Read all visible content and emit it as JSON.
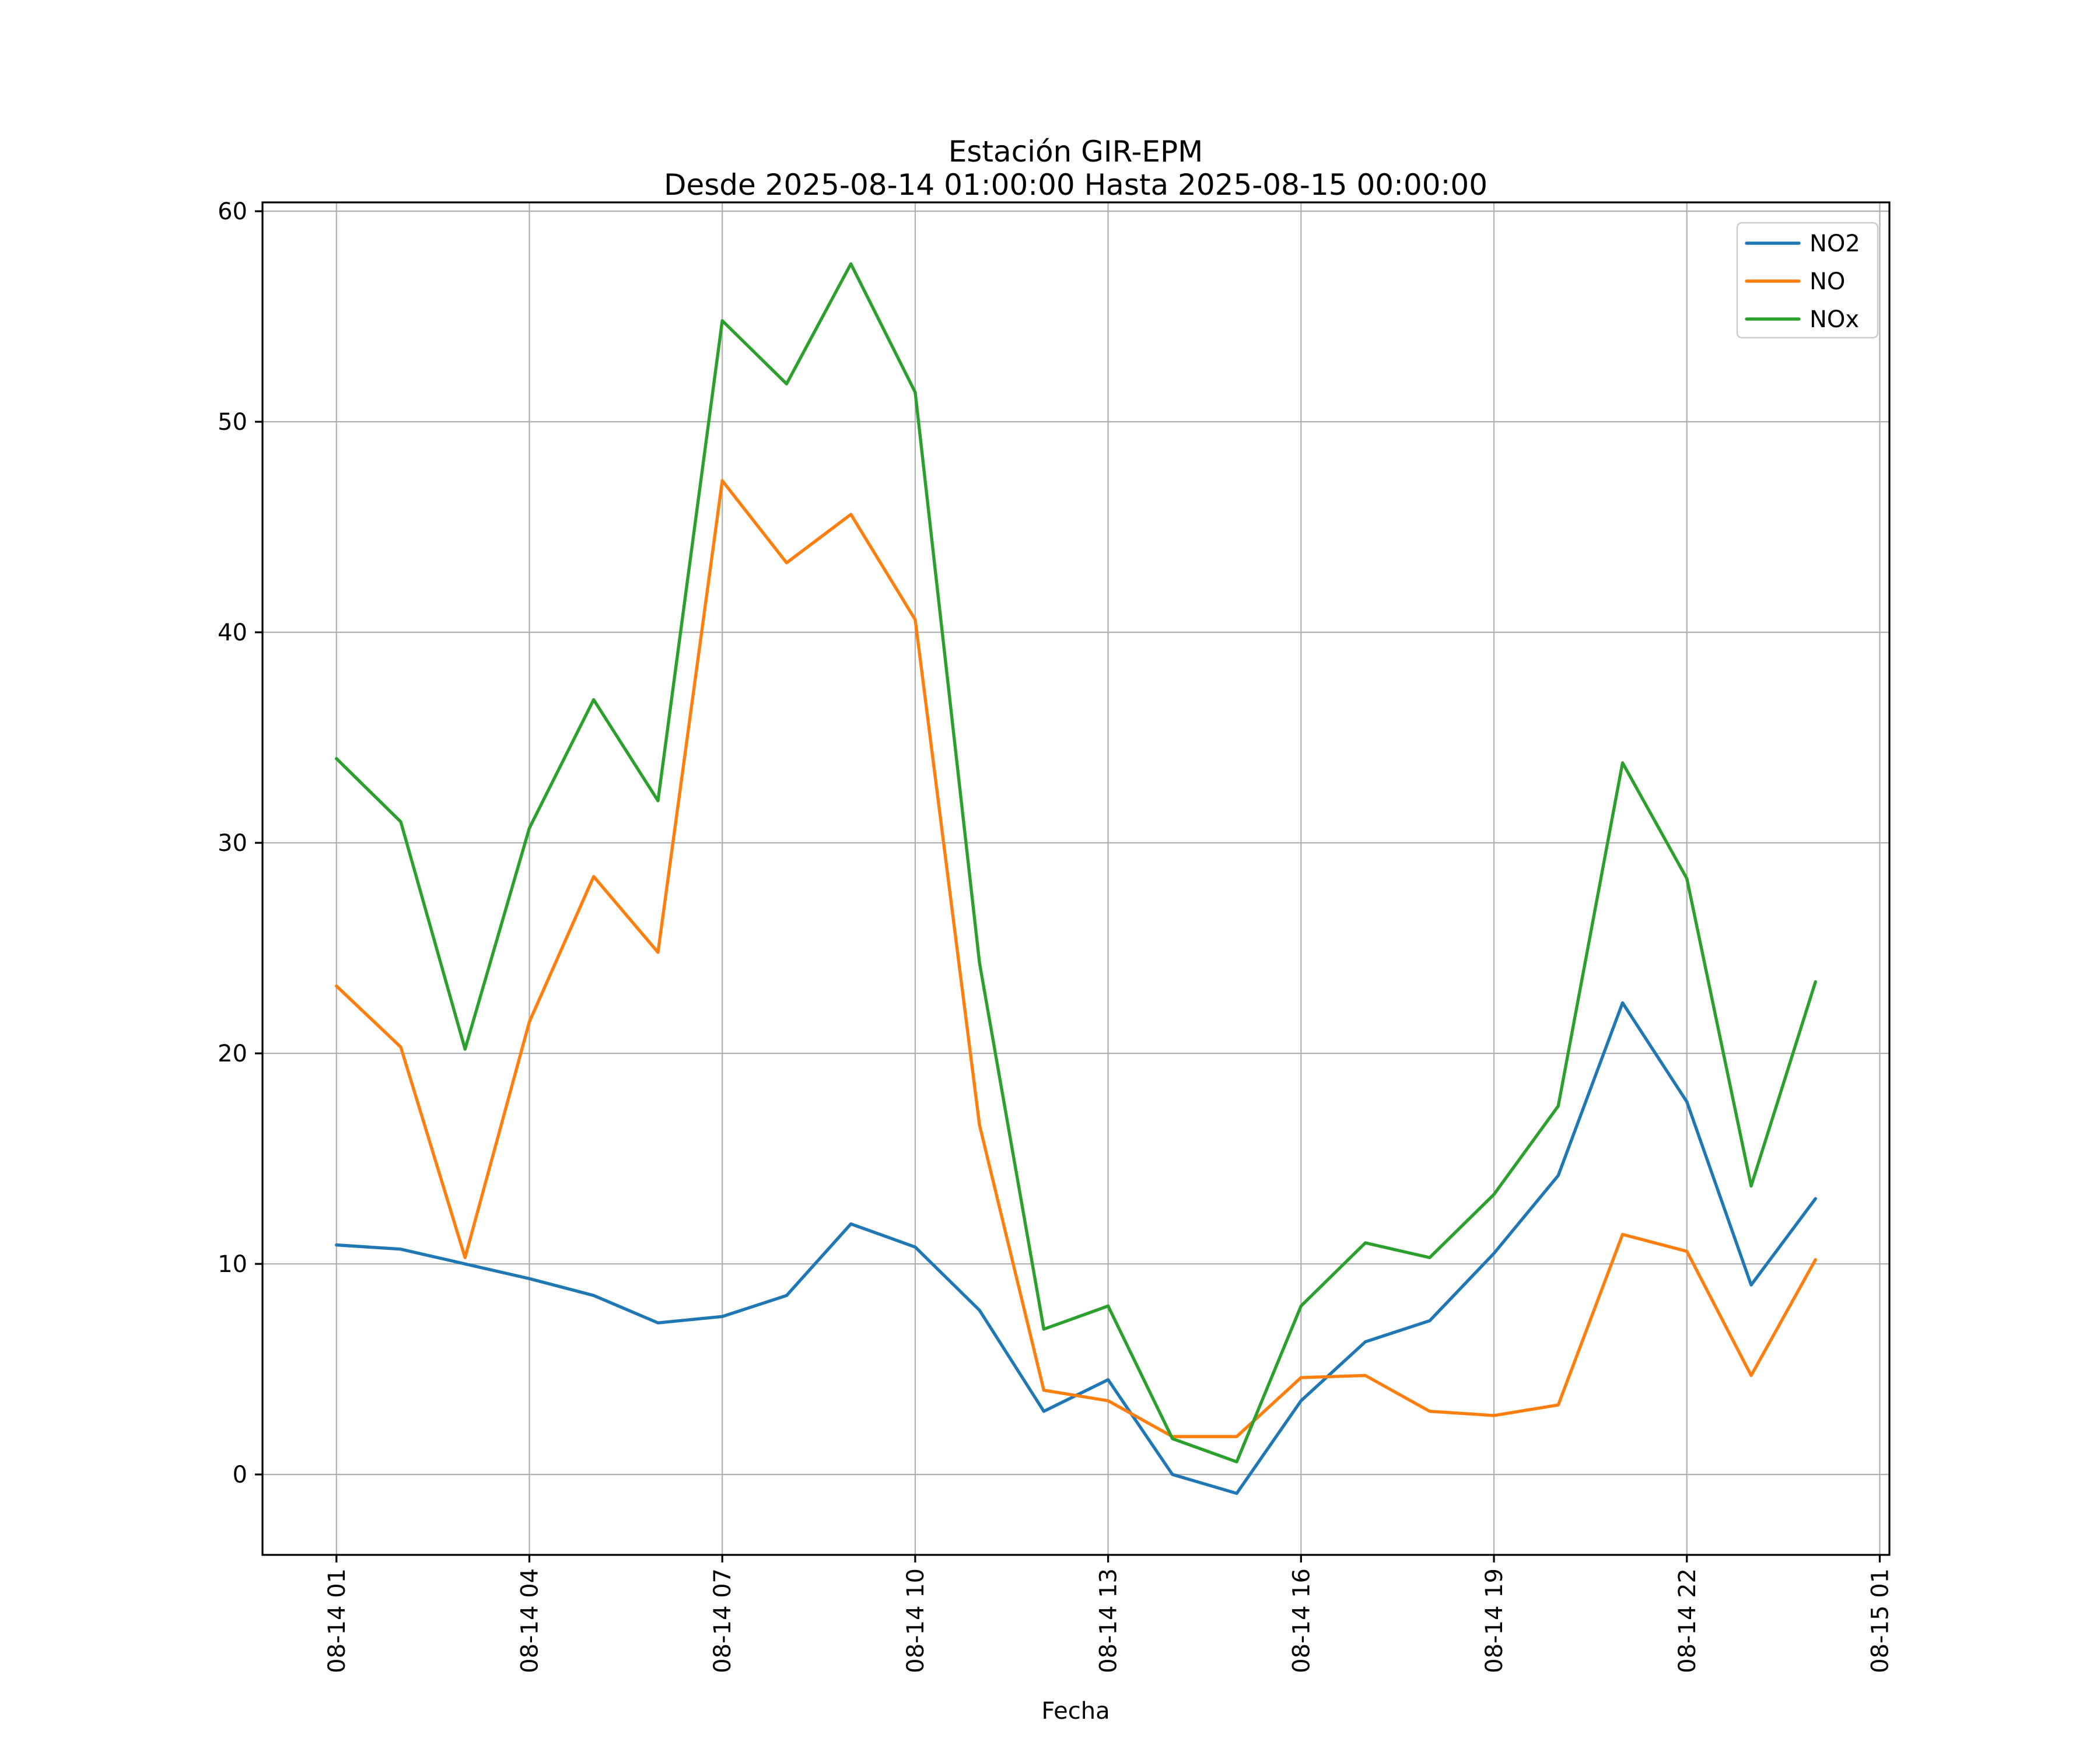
{
  "figure": {
    "title_line1": "Estación GIR-EPM",
    "title_line2": "Desde 2025-08-14 01:00:00 Hasta 2025-08-15 00:00:00",
    "xlabel": "Fecha",
    "background_color": "#ffffff"
  },
  "axes": {
    "grid_color": "#b0b0b0",
    "spine_color": "#000000",
    "tick_label_color": "#000000",
    "y_tick_labels": [
      "0",
      "10",
      "20",
      "30",
      "40",
      "50",
      "60"
    ],
    "x_tick_labels": [
      "08-14 01",
      "08-14 04",
      "08-14 07",
      "08-14 10",
      "08-14 13",
      "08-14 16",
      "08-14 19",
      "08-14 22",
      "08-15 01"
    ]
  },
  "legend": {
    "position": "upper right",
    "border_color": "#cccccc",
    "entries": [
      {
        "label": "NO2",
        "color": "#1f77b4"
      },
      {
        "label": "NO",
        "color": "#ff7f0e"
      },
      {
        "label": "NOx",
        "color": "#2ca02c"
      }
    ]
  },
  "chart_data": {
    "type": "line",
    "title": "Estación GIR-EPM\nDesde 2025-08-14 01:00:00 Hasta 2025-08-15 00:00:00",
    "xlabel": "Fecha",
    "ylabel": "",
    "grid": true,
    "legend_position": "upper right",
    "x_timestamps": [
      "2025-08-14 01:00",
      "2025-08-14 02:00",
      "2025-08-14 03:00",
      "2025-08-14 04:00",
      "2025-08-14 05:00",
      "2025-08-14 06:00",
      "2025-08-14 07:00",
      "2025-08-14 08:00",
      "2025-08-14 09:00",
      "2025-08-14 10:00",
      "2025-08-14 11:00",
      "2025-08-14 12:00",
      "2025-08-14 13:00",
      "2025-08-14 14:00",
      "2025-08-14 15:00",
      "2025-08-14 16:00",
      "2025-08-14 17:00",
      "2025-08-14 18:00",
      "2025-08-14 19:00",
      "2025-08-14 20:00",
      "2025-08-14 21:00",
      "2025-08-14 22:00",
      "2025-08-14 23:00",
      "2025-08-15 00:00"
    ],
    "x_hours": [
      1,
      2,
      3,
      4,
      5,
      6,
      7,
      8,
      9,
      10,
      11,
      12,
      13,
      14,
      15,
      16,
      17,
      18,
      19,
      20,
      21,
      22,
      23,
      24
    ],
    "series": [
      {
        "name": "NO2",
        "color": "#1f77b4",
        "values": [
          10.9,
          10.7,
          10.0,
          9.3,
          8.5,
          7.2,
          7.5,
          8.5,
          11.9,
          10.8,
          7.8,
          3.0,
          4.5,
          0.0,
          -0.9,
          3.5,
          6.3,
          7.3,
          10.5,
          14.2,
          22.4,
          17.7,
          9.0,
          13.1
        ]
      },
      {
        "name": "NO",
        "color": "#ff7f0e",
        "values": [
          23.2,
          20.3,
          10.3,
          21.5,
          28.4,
          24.8,
          47.2,
          43.3,
          45.6,
          40.6,
          16.6,
          4.0,
          3.5,
          1.8,
          1.8,
          4.6,
          4.7,
          3.0,
          2.8,
          3.3,
          11.4,
          10.6,
          4.7,
          10.2
        ]
      },
      {
        "name": "NOx",
        "color": "#2ca02c",
        "values": [
          34.0,
          31.0,
          20.2,
          30.7,
          36.8,
          32.0,
          54.8,
          51.8,
          57.5,
          51.4,
          24.3,
          6.9,
          8.0,
          1.7,
          0.6,
          8.0,
          11.0,
          10.3,
          13.3,
          17.5,
          33.8,
          28.3,
          13.7,
          23.4
        ]
      }
    ],
    "x_tick_hours": [
      1,
      4,
      7,
      10,
      13,
      16,
      19,
      22,
      25
    ],
    "x_tick_labels": [
      "08-14 01",
      "08-14 04",
      "08-14 07",
      "08-14 10",
      "08-14 13",
      "08-14 16",
      "08-14 19",
      "08-14 22",
      "08-15 01"
    ],
    "y_ticks": [
      0,
      10,
      20,
      30,
      40,
      50,
      60
    ],
    "xlim_hours": [
      -0.15,
      25.15
    ],
    "ylim": [
      -3.82,
      60.42
    ]
  }
}
